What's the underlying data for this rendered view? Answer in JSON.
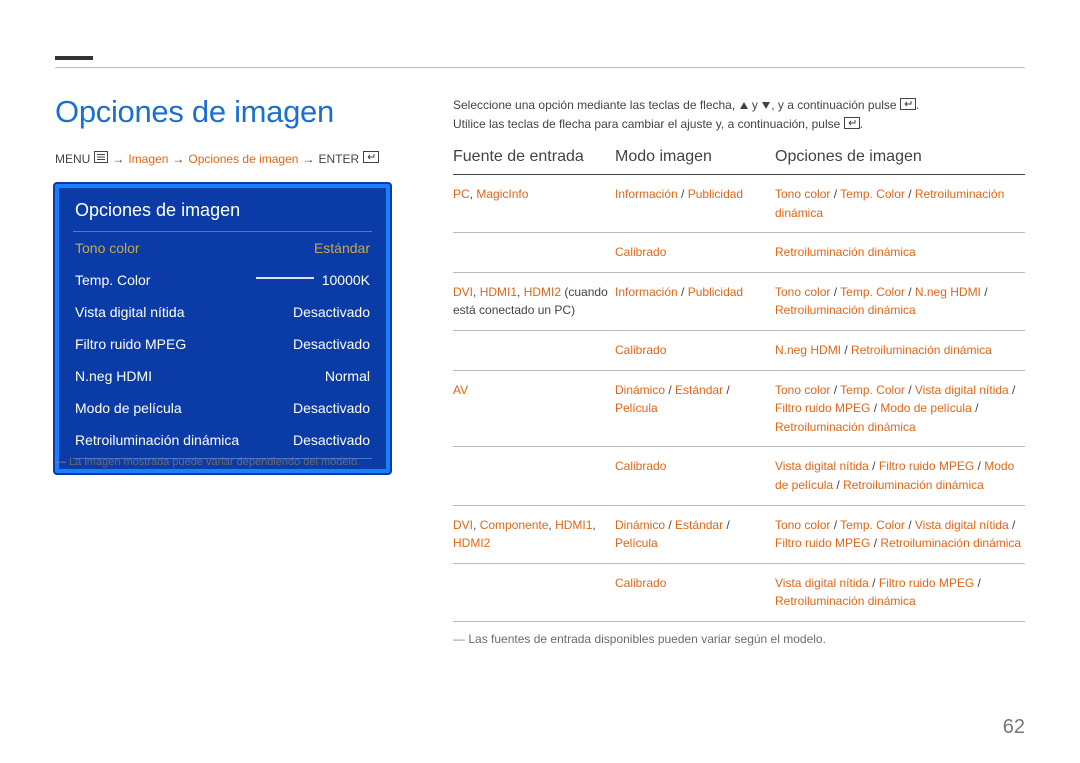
{
  "page": {
    "title": "Opciones de imagen",
    "number": "62",
    "note": "La imagen mostrada puede variar dependiendo del modelo.",
    "table_note": "Las fuentes de entrada disponibles pueden variar según el modelo."
  },
  "breadcrumb": {
    "prefix": "MENU",
    "arrow": "→",
    "step1": "Imagen",
    "step2": "Opciones de imagen",
    "suffix": "ENTER"
  },
  "intro": {
    "line1_a": "Seleccione una opción mediante las teclas de flecha, ",
    "line1_b": " y ",
    "line1_c": ", y a continuación pulse ",
    "line1_d": ".",
    "line2_a": "Utilice las teclas de flecha para cambiar el ajuste y, a continuación, pulse ",
    "line2_b": "."
  },
  "menu": {
    "title": "Opciones de imagen",
    "rows": [
      {
        "label": "Tono color",
        "value": "Estándar",
        "selected": true
      },
      {
        "label": "Temp. Color",
        "value": "10000K",
        "slider": true
      },
      {
        "label": "Vista digital nítida",
        "value": "Desactivado"
      },
      {
        "label": "Filtro ruido MPEG",
        "value": "Desactivado"
      },
      {
        "label": "N.neg HDMI",
        "value": "Normal"
      },
      {
        "label": "Modo de película",
        "value": "Desactivado"
      },
      {
        "label": "Retroiluminación dinámica",
        "value": "Desactivado"
      }
    ]
  },
  "table": {
    "headers": {
      "c1": "Fuente de entrada",
      "c2": "Modo imagen",
      "c3": "Opciones de imagen"
    },
    "sep": " / ",
    "rows": [
      {
        "c1": [
          {
            "t": "PC",
            "c": "orange"
          },
          {
            "t": ", ",
            "c": "black"
          },
          {
            "t": "MagicInfo",
            "c": "orange"
          }
        ],
        "c2": [
          {
            "t": "Información",
            "c": "orange"
          },
          {
            "t": " / ",
            "c": "black"
          },
          {
            "t": "Publicidad",
            "c": "orange"
          }
        ],
        "c3": [
          {
            "t": "Tono color",
            "c": "orange"
          },
          {
            "t": " / ",
            "c": "black"
          },
          {
            "t": "Temp. Color",
            "c": "orange"
          },
          {
            "t": " / ",
            "c": "black"
          },
          {
            "t": "Retroiluminación dinámica",
            "c": "orange"
          }
        ]
      },
      {
        "c1": [],
        "c2": [
          {
            "t": "Calibrado",
            "c": "orange"
          }
        ],
        "c3": [
          {
            "t": "Retroiluminación dinámica",
            "c": "orange"
          }
        ]
      },
      {
        "c1": [
          {
            "t": "DVI",
            "c": "orange"
          },
          {
            "t": ", ",
            "c": "black"
          },
          {
            "t": "HDMI1",
            "c": "orange"
          },
          {
            "t": ", ",
            "c": "black"
          },
          {
            "t": "HDMI2",
            "c": "orange"
          },
          {
            "t": " (cuando está conectado un PC)",
            "c": "black"
          }
        ],
        "c2": [
          {
            "t": "Información",
            "c": "orange"
          },
          {
            "t": " / ",
            "c": "black"
          },
          {
            "t": "Publicidad",
            "c": "orange"
          }
        ],
        "c3": [
          {
            "t": "Tono color",
            "c": "orange"
          },
          {
            "t": " / ",
            "c": "black"
          },
          {
            "t": "Temp. Color",
            "c": "orange"
          },
          {
            "t": " / ",
            "c": "black"
          },
          {
            "t": "N.neg HDMI",
            "c": "orange"
          },
          {
            "t": " / ",
            "c": "black"
          },
          {
            "t": "Retroiluminación dinámica",
            "c": "orange"
          }
        ]
      },
      {
        "c1": [],
        "c2": [
          {
            "t": "Calibrado",
            "c": "orange"
          }
        ],
        "c3": [
          {
            "t": "N.neg HDMI",
            "c": "orange"
          },
          {
            "t": " / ",
            "c": "black"
          },
          {
            "t": "Retroiluminación dinámica",
            "c": "orange"
          }
        ]
      },
      {
        "c1": [
          {
            "t": "AV",
            "c": "orange"
          }
        ],
        "c2": [
          {
            "t": "Dinámico",
            "c": "orange"
          },
          {
            "t": " / ",
            "c": "black"
          },
          {
            "t": "Estándar",
            "c": "orange"
          },
          {
            "t": " / ",
            "c": "black"
          },
          {
            "t": "Película",
            "c": "orange"
          }
        ],
        "c3": [
          {
            "t": "Tono color",
            "c": "orange"
          },
          {
            "t": " / ",
            "c": "black"
          },
          {
            "t": "Temp. Color",
            "c": "orange"
          },
          {
            "t": " / ",
            "c": "black"
          },
          {
            "t": "Vista digital nítida",
            "c": "orange"
          },
          {
            "t": " / ",
            "c": "black"
          },
          {
            "t": "Filtro ruido MPEG",
            "c": "orange"
          },
          {
            "t": " / ",
            "c": "black"
          },
          {
            "t": "Modo de película",
            "c": "orange"
          },
          {
            "t": " / ",
            "c": "black"
          },
          {
            "t": "Retroiluminación dinámica",
            "c": "orange"
          }
        ]
      },
      {
        "c1": [],
        "c2": [
          {
            "t": "Calibrado",
            "c": "orange"
          }
        ],
        "c3": [
          {
            "t": "Vista digital nítida",
            "c": "orange"
          },
          {
            "t": " / ",
            "c": "black"
          },
          {
            "t": "Filtro ruido MPEG",
            "c": "orange"
          },
          {
            "t": " / ",
            "c": "black"
          },
          {
            "t": "Modo de película",
            "c": "orange"
          },
          {
            "t": " / ",
            "c": "black"
          },
          {
            "t": "Retroiluminación dinámica",
            "c": "orange"
          }
        ]
      },
      {
        "c1": [
          {
            "t": "DVI",
            "c": "orange"
          },
          {
            "t": ", ",
            "c": "black"
          },
          {
            "t": "Componente",
            "c": "orange"
          },
          {
            "t": ", ",
            "c": "black"
          },
          {
            "t": "HDMI1",
            "c": "orange"
          },
          {
            "t": ", ",
            "c": "black"
          },
          {
            "t": "HDMI2",
            "c": "orange"
          }
        ],
        "c2": [
          {
            "t": "Dinámico",
            "c": "orange"
          },
          {
            "t": " / ",
            "c": "black"
          },
          {
            "t": "Estándar",
            "c": "orange"
          },
          {
            "t": " / ",
            "c": "black"
          },
          {
            "t": "Película",
            "c": "orange"
          }
        ],
        "c3": [
          {
            "t": "Tono color",
            "c": "orange"
          },
          {
            "t": " / ",
            "c": "black"
          },
          {
            "t": "Temp. Color",
            "c": "orange"
          },
          {
            "t": " / ",
            "c": "black"
          },
          {
            "t": "Vista digital nítida",
            "c": "orange"
          },
          {
            "t": " / ",
            "c": "black"
          },
          {
            "t": "Filtro ruido MPEG",
            "c": "orange"
          },
          {
            "t": " / ",
            "c": "black"
          },
          {
            "t": "Retroiluminación dinámica",
            "c": "orange"
          }
        ]
      },
      {
        "c1": [],
        "c2": [
          {
            "t": "Calibrado",
            "c": "orange"
          }
        ],
        "c3": [
          {
            "t": "Vista digital nítida",
            "c": "orange"
          },
          {
            "t": " / ",
            "c": "black"
          },
          {
            "t": "Filtro ruido MPEG",
            "c": "orange"
          },
          {
            "t": " / ",
            "c": "black"
          },
          {
            "t": "Retroiluminación dinámica",
            "c": "orange"
          }
        ]
      }
    ]
  },
  "colors": {
    "accent_blue": "#1b6fd0",
    "accent_orange": "#e26516",
    "menu_bg": "#0a3ba7",
    "menu_border": "#1b7ffd",
    "menu_sel": "#c8a94a",
    "text": "#434343"
  }
}
